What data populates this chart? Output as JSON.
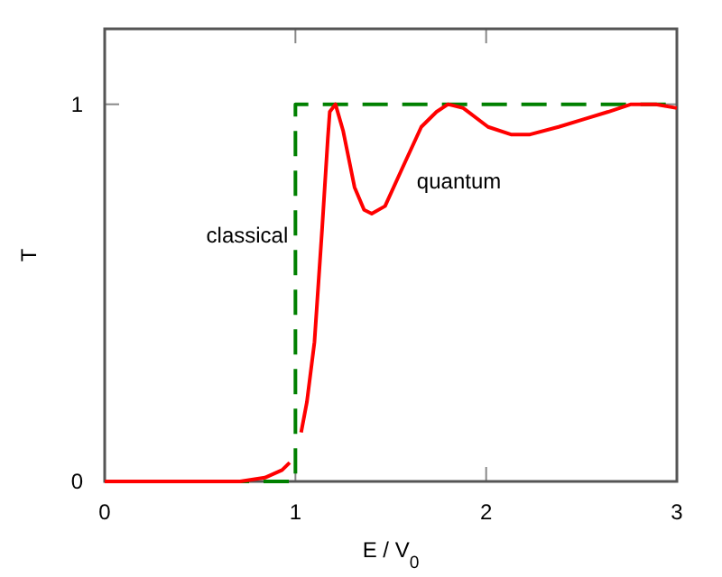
{
  "chart_data": {
    "type": "line",
    "xlabel": "E / V$_{0}$",
    "ylabel": "T",
    "xlim": [
      0,
      3
    ],
    "ylim": [
      0,
      1.2
    ],
    "xticks": [
      0,
      1,
      2,
      3
    ],
    "yticks": [
      0,
      1
    ],
    "grid": false,
    "marker": "none",
    "series": [
      {
        "name": "classical",
        "color": "#008000",
        "line_style": "dashed",
        "x": [
          0,
          1,
          1,
          3
        ],
        "values": [
          0,
          0,
          1,
          1
        ]
      },
      {
        "name": "quantum",
        "color": "#ff0000",
        "line_style": "solid",
        "x": [
          0,
          0.71,
          0.84,
          0.93,
          0.97,
          1,
          1.03,
          1.06,
          1.1,
          1.14,
          1.17,
          1.18,
          1.21,
          1.25,
          1.31,
          1.36,
          1.4,
          1.47,
          1.56,
          1.66,
          1.74,
          1.8,
          1.88,
          2.01,
          2.13,
          2.23,
          2.38,
          2.51,
          2.64,
          2.76,
          2.89,
          3
        ],
        "values": [
          0,
          0,
          0.01,
          0.03,
          0.05,
          null,
          0.13,
          0.21,
          0.37,
          0.67,
          0.91,
          0.98,
          1,
          0.93,
          0.78,
          0.72,
          0.71,
          0.73,
          0.83,
          0.94,
          0.98,
          1,
          0.99,
          0.94,
          0.92,
          0.92,
          0.94,
          0.96,
          0.98,
          1,
          1,
          0.99
        ]
      }
    ]
  }
}
